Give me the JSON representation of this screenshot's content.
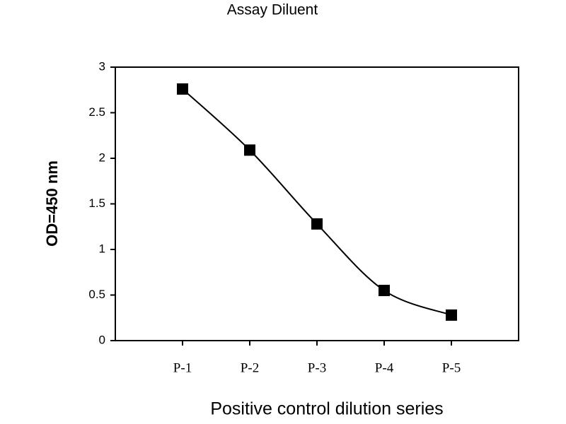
{
  "chart_data": {
    "type": "line",
    "title": "Assay Diluent",
    "x_label": "Positive control dilution series",
    "y_label": "OD=450 nm",
    "categories": [
      "P-1",
      "P-2",
      "P-3",
      "P-4",
      "P-5"
    ],
    "series": [
      {
        "name": "Assay Diluent",
        "color": "#000000",
        "values": [
          2.76,
          2.09,
          1.28,
          0.55,
          0.28
        ]
      }
    ],
    "ylim": [
      0,
      3
    ],
    "yticks": [
      0,
      0.5,
      1,
      1.5,
      2,
      2.5,
      3
    ],
    "grid": false
  }
}
